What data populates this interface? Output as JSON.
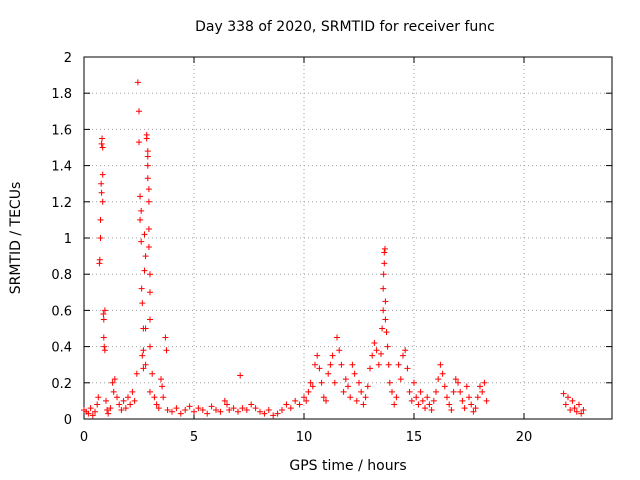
{
  "chart_data": {
    "type": "scatter",
    "title": "Day 338 of 2020, SRMTID for receiver func",
    "xlabel": "GPS time / hours",
    "ylabel": "SRMTID / TECUs",
    "xlim": [
      0,
      24
    ],
    "ylim": [
      0,
      2
    ],
    "xticks": [
      0,
      5,
      10,
      15,
      20
    ],
    "yticks": [
      0,
      0.2,
      0.4,
      0.6,
      0.8,
      1,
      1.2,
      1.4,
      1.6,
      1.8,
      2
    ],
    "xtick_labels": [
      "0",
      "5",
      "10",
      "15",
      "20"
    ],
    "ytick_labels": [
      "0",
      "0.2",
      "0.4",
      "0.6",
      "0.8",
      "1",
      "1.2",
      "1.4",
      "1.6",
      "1.8",
      "2"
    ],
    "grid": true,
    "marker": "+",
    "color": "#ff0000",
    "series": [
      {
        "name": "SRMTID",
        "points": [
          [
            0.0,
            0.05
          ],
          [
            0.1,
            0.04
          ],
          [
            0.2,
            0.03
          ],
          [
            0.3,
            0.06
          ],
          [
            0.4,
            0.02
          ],
          [
            0.5,
            0.04
          ],
          [
            0.6,
            0.08
          ],
          [
            0.65,
            0.12
          ],
          [
            0.7,
            0.86
          ],
          [
            0.72,
            0.88
          ],
          [
            0.75,
            1.0
          ],
          [
            0.75,
            1.1
          ],
          [
            0.78,
            1.3
          ],
          [
            0.8,
            1.25
          ],
          [
            0.8,
            1.52
          ],
          [
            0.82,
            1.55
          ],
          [
            0.85,
            1.5
          ],
          [
            0.85,
            1.35
          ],
          [
            0.85,
            1.2
          ],
          [
            0.88,
            0.58
          ],
          [
            0.9,
            0.55
          ],
          [
            0.9,
            0.45
          ],
          [
            0.92,
            0.4
          ],
          [
            0.95,
            0.38
          ],
          [
            0.95,
            0.6
          ],
          [
            1.0,
            0.1
          ],
          [
            1.05,
            0.05
          ],
          [
            1.1,
            0.03
          ],
          [
            1.2,
            0.06
          ],
          [
            1.3,
            0.2
          ],
          [
            1.35,
            0.15
          ],
          [
            1.4,
            0.22
          ],
          [
            1.5,
            0.12
          ],
          [
            1.6,
            0.08
          ],
          [
            1.7,
            0.05
          ],
          [
            1.8,
            0.1
          ],
          [
            1.9,
            0.06
          ],
          [
            2.0,
            0.12
          ],
          [
            2.1,
            0.08
          ],
          [
            2.2,
            0.15
          ],
          [
            2.3,
            0.1
          ],
          [
            2.4,
            0.25
          ],
          [
            2.45,
            1.86
          ],
          [
            2.5,
            1.7
          ],
          [
            2.5,
            1.53
          ],
          [
            2.55,
            1.23
          ],
          [
            2.55,
            1.1
          ],
          [
            2.6,
            1.15
          ],
          [
            2.6,
            0.98
          ],
          [
            2.62,
            0.72
          ],
          [
            2.65,
            0.64
          ],
          [
            2.65,
            0.35
          ],
          [
            2.7,
            0.5
          ],
          [
            2.7,
            0.38
          ],
          [
            2.7,
            0.28
          ],
          [
            2.75,
            1.02
          ],
          [
            2.75,
            0.82
          ],
          [
            2.8,
            0.9
          ],
          [
            2.8,
            0.5
          ],
          [
            2.8,
            0.3
          ],
          [
            2.85,
            1.57
          ],
          [
            2.85,
            1.55
          ],
          [
            2.9,
            1.48
          ],
          [
            2.9,
            1.45
          ],
          [
            2.9,
            1.4
          ],
          [
            2.9,
            1.33
          ],
          [
            2.95,
            1.27
          ],
          [
            2.95,
            1.2
          ],
          [
            2.95,
            1.05
          ],
          [
            2.95,
            0.95
          ],
          [
            3.0,
            0.8
          ],
          [
            3.0,
            0.7
          ],
          [
            3.0,
            0.55
          ],
          [
            3.0,
            0.4
          ],
          [
            3.0,
            0.15
          ],
          [
            3.1,
            0.25
          ],
          [
            3.2,
            0.12
          ],
          [
            3.3,
            0.08
          ],
          [
            3.4,
            0.06
          ],
          [
            3.5,
            0.22
          ],
          [
            3.55,
            0.18
          ],
          [
            3.6,
            0.12
          ],
          [
            3.7,
            0.45
          ],
          [
            3.75,
            0.38
          ],
          [
            3.8,
            0.05
          ],
          [
            4.0,
            0.04
          ],
          [
            4.2,
            0.06
          ],
          [
            4.4,
            0.03
          ],
          [
            4.6,
            0.05
          ],
          [
            4.8,
            0.07
          ],
          [
            5.0,
            0.04
          ],
          [
            5.2,
            0.06
          ],
          [
            5.4,
            0.05
          ],
          [
            5.6,
            0.03
          ],
          [
            5.8,
            0.07
          ],
          [
            6.0,
            0.05
          ],
          [
            6.2,
            0.04
          ],
          [
            6.4,
            0.1
          ],
          [
            6.5,
            0.08
          ],
          [
            6.6,
            0.05
          ],
          [
            6.8,
            0.06
          ],
          [
            7.0,
            0.04
          ],
          [
            7.1,
            0.24
          ],
          [
            7.2,
            0.06
          ],
          [
            7.4,
            0.05
          ],
          [
            7.6,
            0.08
          ],
          [
            7.8,
            0.06
          ],
          [
            8.0,
            0.04
          ],
          [
            8.2,
            0.03
          ],
          [
            8.4,
            0.05
          ],
          [
            8.6,
            0.02
          ],
          [
            8.8,
            0.03
          ],
          [
            9.0,
            0.05
          ],
          [
            9.2,
            0.08
          ],
          [
            9.4,
            0.06
          ],
          [
            9.6,
            0.1
          ],
          [
            9.8,
            0.08
          ],
          [
            10.0,
            0.12
          ],
          [
            10.1,
            0.1
          ],
          [
            10.2,
            0.15
          ],
          [
            10.3,
            0.2
          ],
          [
            10.4,
            0.18
          ],
          [
            10.5,
            0.3
          ],
          [
            10.6,
            0.35
          ],
          [
            10.7,
            0.28
          ],
          [
            10.8,
            0.2
          ],
          [
            10.9,
            0.12
          ],
          [
            11.0,
            0.1
          ],
          [
            11.1,
            0.25
          ],
          [
            11.2,
            0.3
          ],
          [
            11.3,
            0.35
          ],
          [
            11.4,
            0.2
          ],
          [
            11.5,
            0.45
          ],
          [
            11.6,
            0.38
          ],
          [
            11.7,
            0.3
          ],
          [
            11.8,
            0.15
          ],
          [
            11.9,
            0.22
          ],
          [
            12.0,
            0.18
          ],
          [
            12.1,
            0.12
          ],
          [
            12.2,
            0.3
          ],
          [
            12.3,
            0.25
          ],
          [
            12.4,
            0.1
          ],
          [
            12.5,
            0.2
          ],
          [
            12.6,
            0.15
          ],
          [
            12.7,
            0.08
          ],
          [
            12.8,
            0.12
          ],
          [
            12.9,
            0.18
          ],
          [
            13.0,
            0.28
          ],
          [
            13.1,
            0.35
          ],
          [
            13.2,
            0.42
          ],
          [
            13.3,
            0.38
          ],
          [
            13.4,
            0.3
          ],
          [
            13.5,
            0.36
          ],
          [
            13.55,
            0.5
          ],
          [
            13.6,
            0.6
          ],
          [
            13.6,
            0.72
          ],
          [
            13.62,
            0.8
          ],
          [
            13.65,
            0.86
          ],
          [
            13.65,
            0.92
          ],
          [
            13.68,
            0.94
          ],
          [
            13.7,
            0.65
          ],
          [
            13.7,
            0.55
          ],
          [
            13.75,
            0.48
          ],
          [
            13.8,
            0.4
          ],
          [
            13.85,
            0.3
          ],
          [
            13.9,
            0.2
          ],
          [
            14.0,
            0.15
          ],
          [
            14.1,
            0.08
          ],
          [
            14.2,
            0.12
          ],
          [
            14.3,
            0.3
          ],
          [
            14.4,
            0.22
          ],
          [
            14.5,
            0.35
          ],
          [
            14.6,
            0.38
          ],
          [
            14.7,
            0.28
          ],
          [
            14.8,
            0.15
          ],
          [
            14.9,
            0.1
          ],
          [
            15.0,
            0.2
          ],
          [
            15.1,
            0.12
          ],
          [
            15.2,
            0.08
          ],
          [
            15.3,
            0.15
          ],
          [
            15.4,
            0.1
          ],
          [
            15.5,
            0.06
          ],
          [
            15.6,
            0.12
          ],
          [
            15.7,
            0.08
          ],
          [
            15.8,
            0.05
          ],
          [
            15.9,
            0.1
          ],
          [
            16.0,
            0.15
          ],
          [
            16.1,
            0.22
          ],
          [
            16.2,
            0.3
          ],
          [
            16.3,
            0.25
          ],
          [
            16.4,
            0.18
          ],
          [
            16.5,
            0.12
          ],
          [
            16.6,
            0.08
          ],
          [
            16.7,
            0.05
          ],
          [
            16.8,
            0.15
          ],
          [
            16.9,
            0.22
          ],
          [
            17.0,
            0.2
          ],
          [
            17.1,
            0.15
          ],
          [
            17.2,
            0.1
          ],
          [
            17.3,
            0.06
          ],
          [
            17.4,
            0.18
          ],
          [
            17.5,
            0.12
          ],
          [
            17.6,
            0.08
          ],
          [
            17.7,
            0.04
          ],
          [
            17.8,
            0.06
          ],
          [
            17.9,
            0.12
          ],
          [
            18.0,
            0.18
          ],
          [
            18.1,
            0.15
          ],
          [
            18.2,
            0.2
          ],
          [
            18.3,
            0.1
          ],
          [
            21.8,
            0.14
          ],
          [
            21.9,
            0.08
          ],
          [
            22.0,
            0.12
          ],
          [
            22.1,
            0.05
          ],
          [
            22.2,
            0.1
          ],
          [
            22.3,
            0.06
          ],
          [
            22.4,
            0.04
          ],
          [
            22.5,
            0.08
          ],
          [
            22.6,
            0.03
          ],
          [
            22.7,
            0.05
          ]
        ]
      }
    ]
  }
}
